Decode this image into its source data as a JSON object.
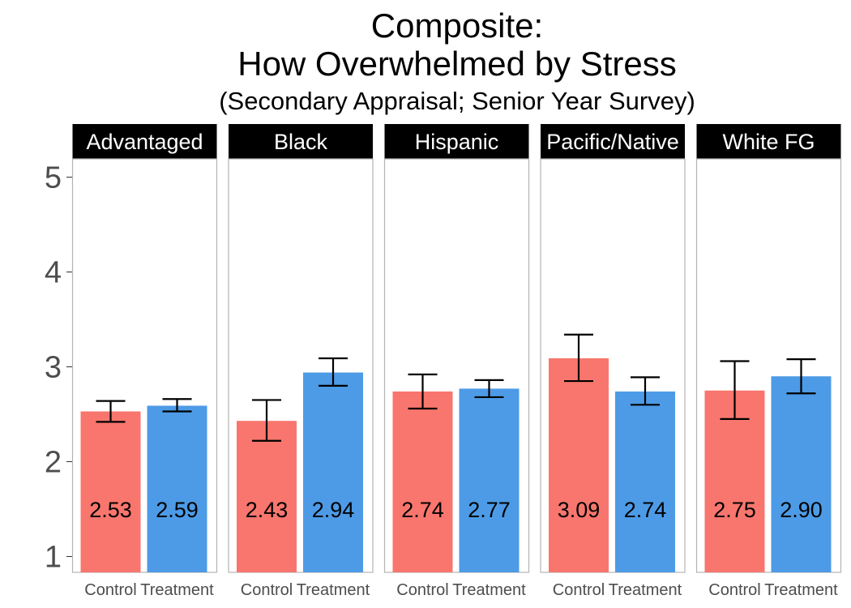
{
  "chart_data": {
    "type": "bar",
    "title": [
      "Composite:",
      "How Overwhelmed by Stress"
    ],
    "subtitle": "(Secondary Appraisal; Senior Year Survey)",
    "xlabel": "",
    "ylabel": "",
    "ylim": [
      1,
      5.3
    ],
    "yticks": [
      "1",
      "2",
      "3",
      "4",
      "5"
    ],
    "grid": false,
    "categories": [
      "Control",
      "Treatment"
    ],
    "colors": {
      "Control": "#F8766D",
      "Treatment": "#4D9BE6"
    },
    "panels": [
      {
        "name": "Advantaged",
        "values": [
          2.53,
          2.59
        ],
        "labels": [
          "2.53",
          "2.59"
        ],
        "err_low": [
          2.42,
          2.53
        ],
        "err_high": [
          2.64,
          2.66
        ]
      },
      {
        "name": "Black",
        "values": [
          2.43,
          2.94
        ],
        "labels": [
          "2.43",
          "2.94"
        ],
        "err_low": [
          2.22,
          2.8
        ],
        "err_high": [
          2.65,
          3.09
        ]
      },
      {
        "name": "Hispanic",
        "values": [
          2.74,
          2.77
        ],
        "labels": [
          "2.74",
          "2.77"
        ],
        "err_low": [
          2.56,
          2.68
        ],
        "err_high": [
          2.92,
          2.86
        ]
      },
      {
        "name": "Pacific/Native",
        "values": [
          3.09,
          2.74
        ],
        "labels": [
          "3.09",
          "2.74"
        ],
        "err_low": [
          2.85,
          2.6
        ],
        "err_high": [
          3.34,
          2.89
        ]
      },
      {
        "name": "White FG",
        "values": [
          2.75,
          2.9
        ],
        "labels": [
          "2.75",
          "2.90"
        ],
        "err_low": [
          2.45,
          2.72
        ],
        "err_high": [
          3.06,
          3.08
        ]
      }
    ]
  }
}
